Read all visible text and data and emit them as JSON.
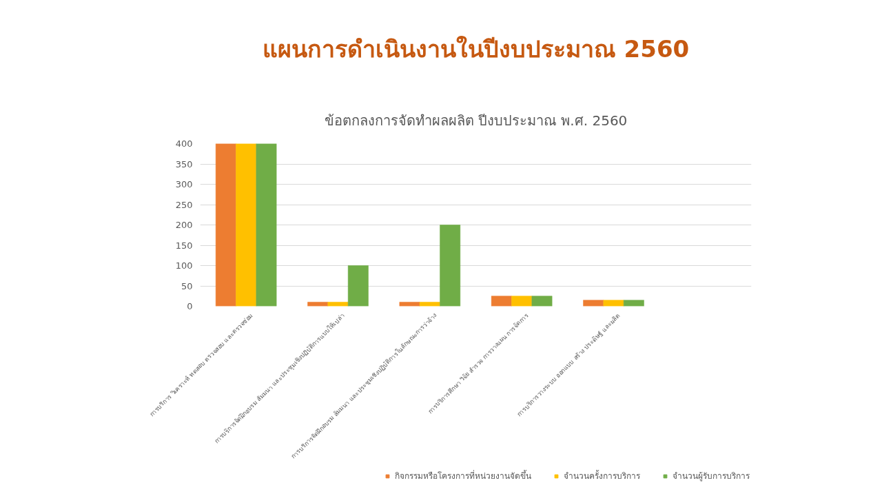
{
  "chart_data": {
    "type": "bar",
    "title": "แผนการดำเนินงานในปีงบประมาณ 2560",
    "subtitle": "ข้อตกลงการจัดทำผลผลิต ปีงบประมาณ พ.ศ. 2560",
    "categories": [
      "การบริการ วิเคราะห์ ทดสอบ ตรวจสอบ และตรวจซ่อม",
      "การบริการจัดฝึกอบรม สัมมนา และประชุมเชิงปฏิบัติการแบบให้เปล่า",
      "การบริการจัดฝึกอบรม สัมมนา และประชุมเชิงปฏิบัติการในลักษณะการว่าจ้าง",
      "การบริการศึกษา วิจัย สำรวจ การวางแผน การจัดการ",
      "การบริการวางระบบ ออกแบบ สร้าง ประดิษฐ์ และผลิต",
      null
    ],
    "series": [
      {
        "name": "กิจกรรมหรือโครงการที่หน่วยงานจัดขึ้น",
        "color": "#ed7d31",
        "values": [
          400,
          10,
          10,
          25,
          15,
          null
        ]
      },
      {
        "name": "จำนวนครั้งการบริการ",
        "color": "#ffc000",
        "values": [
          400,
          10,
          10,
          25,
          15,
          null
        ]
      },
      {
        "name": "จำนวนผู้รับการบริการ",
        "color": "#70ad47",
        "values": [
          400,
          100,
          200,
          25,
          15,
          null
        ]
      }
    ],
    "ylim": [
      0,
      400
    ],
    "yticks": [
      0,
      50,
      100,
      150,
      200,
      250,
      300,
      350,
      400
    ],
    "grid": "y",
    "legend": "bottom right"
  }
}
